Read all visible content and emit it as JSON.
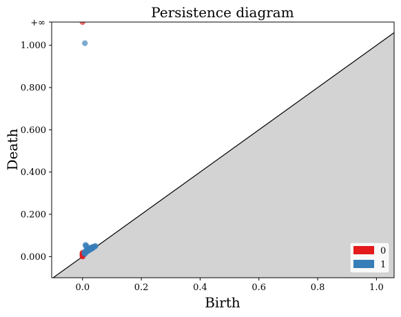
{
  "chart_data": {
    "type": "scatter",
    "title": "Persistence diagram",
    "xlabel": "Birth",
    "ylabel": "Death",
    "xlim": [
      -0.105,
      1.06
    ],
    "ylim": [
      -0.1,
      1.11
    ],
    "x_ticks": [
      {
        "value": 0.0,
        "label": "0.0"
      },
      {
        "value": 0.2,
        "label": "0.2"
      },
      {
        "value": 0.4,
        "label": "0.4"
      },
      {
        "value": 0.6,
        "label": "0.6"
      },
      {
        "value": 0.8,
        "label": "0.8"
      },
      {
        "value": 1.0,
        "label": "1.0"
      }
    ],
    "y_ticks": [
      {
        "value": 0.0,
        "label": "0.000"
      },
      {
        "value": 0.2,
        "label": "0.200"
      },
      {
        "value": 0.4,
        "label": "0.400"
      },
      {
        "value": 0.6,
        "label": "0.600"
      },
      {
        "value": 0.8,
        "label": "0.800"
      },
      {
        "value": 1.0,
        "label": "1.000"
      }
    ],
    "infinity_line": {
      "value": 1.11,
      "label": "+∞"
    },
    "diagonal": {
      "from": [
        -0.105,
        -0.105
      ],
      "to": [
        1.06,
        1.06
      ]
    },
    "legend_placement": "bottom-right",
    "series": [
      {
        "name": "0",
        "color": "#e41a1c",
        "points": [
          [
            0.0,
            1.11
          ],
          [
            0.0,
            0.0
          ],
          [
            0.0,
            0.003
          ],
          [
            0.0,
            0.006
          ],
          [
            0.0,
            0.009
          ],
          [
            0.0,
            0.012
          ],
          [
            0.0,
            0.015
          ],
          [
            0.0,
            0.018
          ],
          [
            0.001,
            0.004
          ],
          [
            0.002,
            0.008
          ]
        ]
      },
      {
        "name": "1",
        "color": "#377eb8",
        "points": [
          [
            0.008,
            1.01
          ],
          [
            0.01,
            0.055
          ],
          [
            0.013,
            0.052
          ],
          [
            0.011,
            0.05
          ],
          [
            0.006,
            0.018
          ],
          [
            0.008,
            0.022
          ],
          [
            0.01,
            0.025
          ],
          [
            0.012,
            0.028
          ],
          [
            0.014,
            0.03
          ],
          [
            0.016,
            0.033
          ],
          [
            0.018,
            0.032
          ],
          [
            0.02,
            0.035
          ],
          [
            0.022,
            0.037
          ],
          [
            0.024,
            0.036
          ],
          [
            0.026,
            0.04
          ],
          [
            0.028,
            0.042
          ],
          [
            0.03,
            0.04
          ],
          [
            0.032,
            0.044
          ],
          [
            0.034,
            0.043
          ],
          [
            0.036,
            0.046
          ],
          [
            0.038,
            0.045
          ],
          [
            0.04,
            0.047
          ],
          [
            0.042,
            0.048
          ],
          [
            0.044,
            0.05
          ],
          [
            0.015,
            0.024
          ],
          [
            0.019,
            0.027
          ],
          [
            0.023,
            0.03
          ],
          [
            0.027,
            0.034
          ],
          [
            0.031,
            0.037
          ],
          [
            0.035,
            0.04
          ],
          [
            0.009,
            0.015
          ],
          [
            0.007,
            0.012
          ]
        ]
      }
    ],
    "tick_formats": {
      "x": "1dp",
      "y": "3dp"
    }
  }
}
